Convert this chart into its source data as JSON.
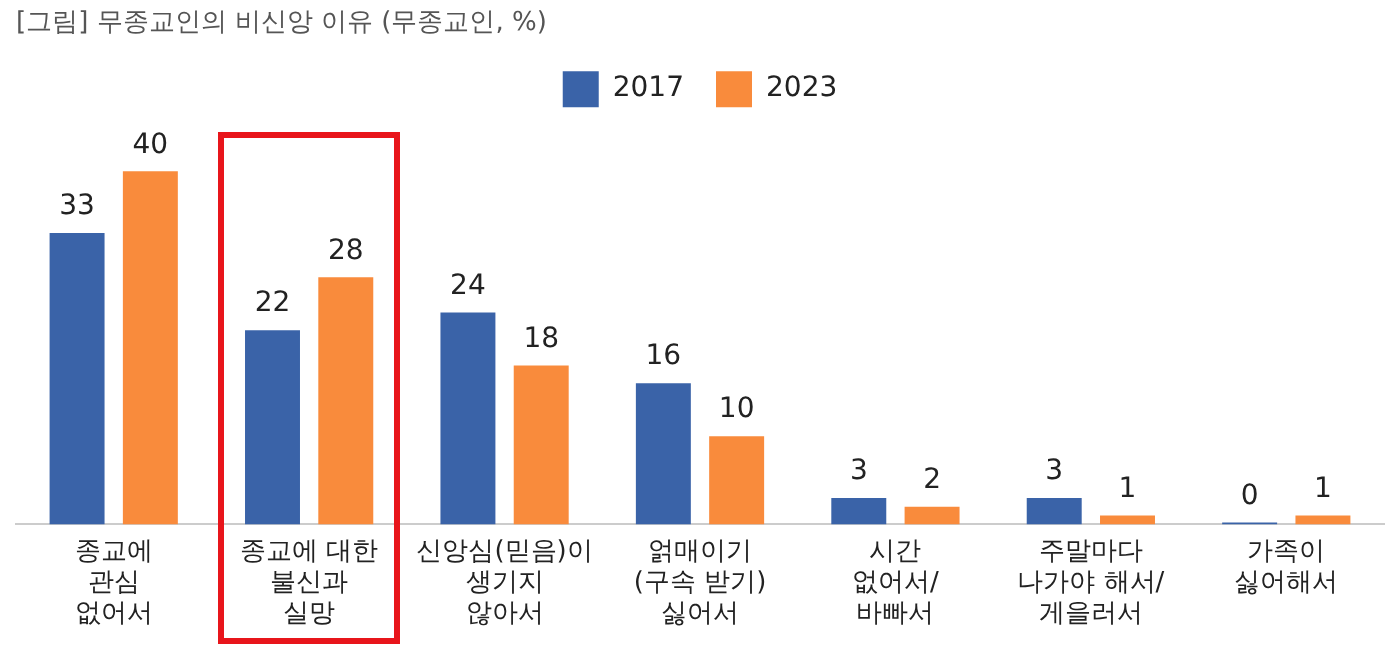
{
  "chart_data": {
    "type": "bar",
    "title": "[그림] 무종교인의 비신앙 이유 (무종교인, %)",
    "categories": [
      "종교에\n관심\n없어서",
      "종교에 대한\n불신과\n실망",
      "신앙심(믿음)이\n생기지\n않아서",
      "얽매이기\n(구속 받기)\n싫어서",
      "시간\n없어서/\n바빠서",
      "주말마다\n나가야 해서/\n게을러서",
      "가족이\n싫어해서"
    ],
    "series": [
      {
        "name": "2017",
        "color": "#3a63a8",
        "values": [
          33,
          22,
          24,
          16,
          3,
          3,
          0
        ]
      },
      {
        "name": "2023",
        "color": "#f98b3c",
        "values": [
          40,
          28,
          18,
          10,
          2,
          1,
          1
        ]
      }
    ],
    "data_labels": true,
    "legend": "top",
    "grid": false,
    "tick_labels": "x"
  }
}
